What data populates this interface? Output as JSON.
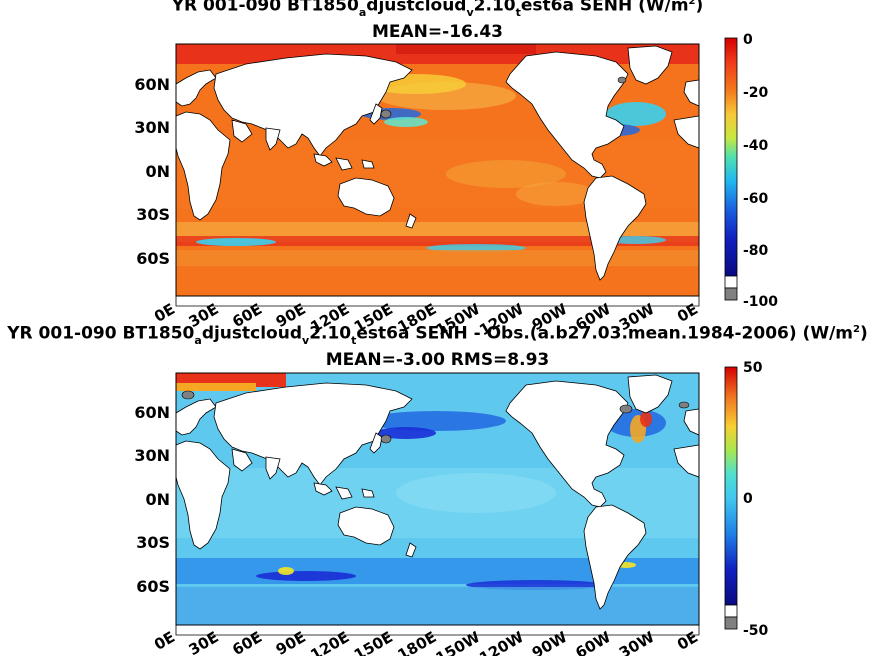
{
  "panels": [
    {
      "title_parts": [
        "YR 001-090 BT1850",
        "a",
        "djustcloud",
        "v",
        "2.10",
        "t",
        "est6a  SENH (W/m",
        "2",
        ")"
      ],
      "stats": "MEAN=-16.43",
      "y_ticks": [
        "60N",
        "30N",
        "0N",
        "30S",
        "60S"
      ],
      "x_ticks": [
        "0E",
        "30E",
        "60E",
        "90E",
        "120E",
        "150E",
        "180E",
        "150W",
        "120W",
        "90W",
        "60W",
        "30W",
        "0E"
      ],
      "colorbar": {
        "labels": [
          "0",
          "-20",
          "-40",
          "-60",
          "-80",
          "-100"
        ],
        "range": [
          -100,
          0
        ]
      }
    },
    {
      "title_parts": [
        "YR 001-090 BT1850",
        "a",
        "djustcloud",
        "v",
        "2.10",
        "t",
        "est6a  SENH - Obs.(a.b27.03.mean.1984-2006) (W/m",
        "2",
        ")"
      ],
      "stats": "MEAN=-3.00 RMS=8.93",
      "y_ticks": [
        "60N",
        "30N",
        "0N",
        "30S",
        "60S"
      ],
      "x_ticks": [
        "0E",
        "30E",
        "60E",
        "90E",
        "120E",
        "150E",
        "180E",
        "150W",
        "120W",
        "90W",
        "60W",
        "30W",
        "0E"
      ],
      "colorbar": {
        "labels": [
          "50",
          "0",
          "-50"
        ],
        "range": [
          -50,
          50
        ]
      }
    }
  ],
  "chart_data": [
    {
      "type": "heatmap",
      "title": "YR 001-090 BT1850adjustcloudv2.10test6a  SENH (W/m2)",
      "subtitle": "MEAN=-16.43",
      "xlabel": "",
      "ylabel": "",
      "x_ticks": [
        "0E",
        "30E",
        "60E",
        "90E",
        "120E",
        "150E",
        "180E",
        "150W",
        "120W",
        "90W",
        "60W",
        "30W",
        "0E"
      ],
      "y_ticks": [
        "60N",
        "30N",
        "0N",
        "30S",
        "60S"
      ],
      "colorbar_range": [
        -100,
        0
      ],
      "colors": {
        "ocean_base": "#f4731c",
        "warm": "#e8321a",
        "mid": "#f5a623",
        "cool": "#21c4e0",
        "deep": "#1a2fd6",
        "land": "#ffffff",
        "missing": "#808080"
      }
    },
    {
      "type": "heatmap",
      "title": "YR 001-090 BT1850adjustcloudv2.10test6a  SENH - Obs.(a.b27.03.mean.1984-2006) (W/m2)",
      "subtitle": "MEAN=-3.00 RMS=8.93",
      "xlabel": "",
      "ylabel": "",
      "x_ticks": [
        "0E",
        "30E",
        "60E",
        "90E",
        "120E",
        "150E",
        "180E",
        "150W",
        "120W",
        "90W",
        "60W",
        "30W",
        "0E"
      ],
      "y_ticks": [
        "60N",
        "30N",
        "0N",
        "30S",
        "60S"
      ],
      "colorbar_range": [
        -50,
        50
      ],
      "colors": {
        "ocean_base": "#5ec8ee",
        "warm": "#e8321a",
        "mid": "#f5e623",
        "cool": "#8fe0f5",
        "deep": "#1a2fd6",
        "land": "#ffffff",
        "missing": "#808080"
      }
    }
  ]
}
